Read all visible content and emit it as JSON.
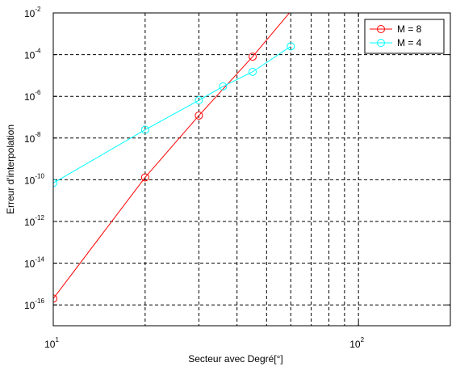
{
  "chart_data": {
    "type": "line",
    "xscale": "log",
    "yscale": "log",
    "xlabel": "Secteur avec Degré[°]",
    "ylabel": "Erreur d'interpolation",
    "xlim": [
      10,
      200
    ],
    "ylim": [
      1e-17,
      0.01
    ],
    "grid": true,
    "legend_position": "top-right",
    "x_ticks": [
      {
        "value": 10,
        "base": "10",
        "exp": "1"
      },
      {
        "value": 100,
        "base": "10",
        "exp": "2"
      }
    ],
    "y_ticks": [
      {
        "value": 0.01,
        "base": "10",
        "exp": "-2"
      },
      {
        "value": 0.0001,
        "base": "10",
        "exp": "-4"
      },
      {
        "value": 1e-06,
        "base": "10",
        "exp": "-6"
      },
      {
        "value": 1e-08,
        "base": "10",
        "exp": "-8"
      },
      {
        "value": 1e-10,
        "base": "10",
        "exp": "-10"
      },
      {
        "value": 1e-12,
        "base": "10",
        "exp": "-12"
      },
      {
        "value": 1e-14,
        "base": "10",
        "exp": "-14"
      },
      {
        "value": 1e-16,
        "base": "10",
        "exp": "-16"
      }
    ],
    "series": [
      {
        "name": "M = 8",
        "color": "#ff0000",
        "marker": "circle",
        "x": [
          10,
          20,
          30,
          45,
          60
        ],
        "y": [
          2e-16,
          1.3e-10,
          1.2e-07,
          8e-05,
          0.012
        ]
      },
      {
        "name": "M = 4",
        "color": "#00ffff",
        "marker": "circle",
        "x": [
          10,
          20,
          30,
          36,
          45,
          60
        ],
        "y": [
          7e-11,
          2.5e-08,
          6.5e-07,
          3e-06,
          1.5e-05,
          0.00025
        ]
      }
    ],
    "marker_x_range": [
      10,
      60
    ]
  }
}
